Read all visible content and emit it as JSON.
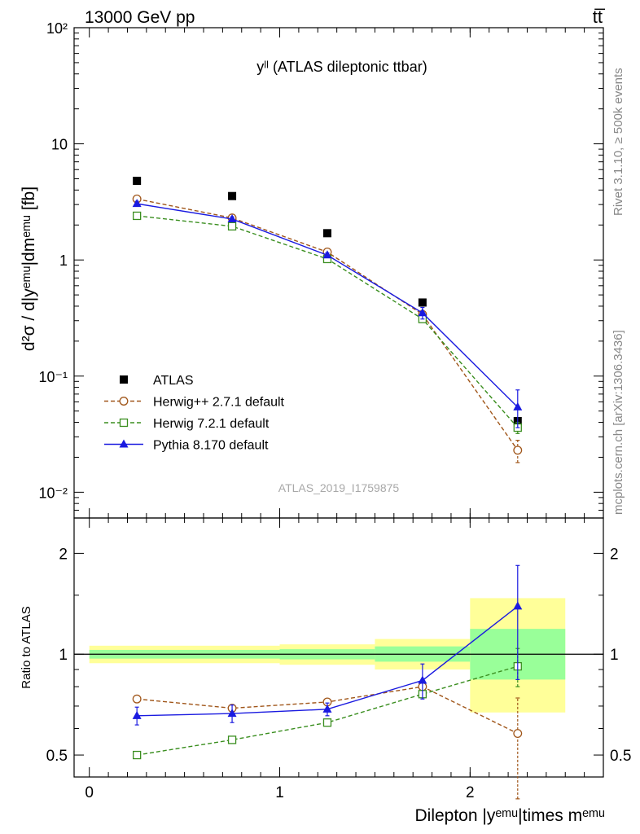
{
  "header": {
    "left": "13000 GeV pp",
    "right": "tt̅"
  },
  "side_text": {
    "rivet": "Rivet 3.1.10, ≥ 500k events",
    "mcplots": "mcplots.cern.ch [arXiv:1306.3436]"
  },
  "chart_data": [
    {
      "type": "scatter",
      "title": "yˡˡ (ATLAS dileptonic ttbar)",
      "ylabel": "d²σ / d|yᵉᵐᵘ|dmᵉᵐᵘ [fb]",
      "yscale": "log",
      "ylim": [
        0.006,
        100
      ],
      "xlim": [
        -0.08,
        2.7
      ],
      "y_tick_labels": [
        "10⁻²",
        "10⁻¹",
        "1",
        "10",
        "10²"
      ],
      "watermark": "ATLAS_2019_I1759875",
      "legend_position": "lower-left",
      "x": [
        0.25,
        0.75,
        1.25,
        1.75,
        2.25
      ],
      "series": [
        {
          "name": "ATLAS",
          "marker": "filled-square",
          "line": "none",
          "color": "#000000",
          "values": [
            4.8,
            3.55,
            1.7,
            0.43,
            0.041
          ]
        },
        {
          "name": "Herwig++ 2.7.1 default",
          "marker": "open-circle",
          "line": "dashed",
          "color": "#a0561a",
          "values": [
            3.35,
            2.3,
            1.17,
            0.34,
            0.023
          ],
          "err_low": [
            0,
            0,
            0,
            0,
            0.005
          ],
          "err_high": [
            0,
            0,
            0,
            0,
            0.005
          ]
        },
        {
          "name": "Herwig 7.2.1 default",
          "marker": "open-square",
          "line": "dashed",
          "color": "#3a8e1f",
          "values": [
            2.4,
            1.95,
            1.02,
            0.31,
            0.036
          ],
          "err_low": [
            0,
            0,
            0,
            0,
            0.004
          ],
          "err_high": [
            0,
            0,
            0,
            0,
            0.004
          ]
        },
        {
          "name": "Pythia 8.170 default",
          "marker": "filled-triangle",
          "line": "solid",
          "color": "#1a1ae0",
          "values": [
            3.05,
            2.25,
            1.1,
            0.35,
            0.054
          ],
          "err_low": [
            0.15,
            0.1,
            0.05,
            0.04,
            0.018
          ],
          "err_high": [
            0.15,
            0.1,
            0.05,
            0.04,
            0.022
          ]
        }
      ]
    },
    {
      "type": "scatter",
      "ylabel": "Ratio to ATLAS",
      "xlabel": "Dilepton |yᵉᵐᵘ|times mᵉᵐᵘ",
      "yscale": "log",
      "ylim": [
        0.43,
        2.55
      ],
      "xlim": [
        -0.08,
        2.7
      ],
      "x_ticks": [
        0,
        1,
        2
      ],
      "x_tick_labels": [
        "0",
        "1",
        "2"
      ],
      "y_ticks": [
        0.5,
        1,
        2
      ],
      "y_tick_labels": [
        "0.5",
        "1",
        "2"
      ],
      "bands": {
        "bins": [
          [
            0,
            1
          ],
          [
            1,
            1.5
          ],
          [
            1.5,
            2
          ],
          [
            2,
            2.5
          ]
        ],
        "yellow": [
          [
            0.94,
            1.06
          ],
          [
            0.93,
            1.07
          ],
          [
            0.9,
            1.11
          ],
          [
            0.67,
            1.47
          ]
        ],
        "green": [
          [
            0.97,
            1.03
          ],
          [
            0.965,
            1.035
          ],
          [
            0.95,
            1.055
          ],
          [
            0.84,
            1.19
          ]
        ],
        "yellow_color": "#ffff99",
        "green_color": "#99ff99"
      },
      "x": [
        0.25,
        0.75,
        1.25,
        1.75,
        2.25
      ],
      "series": [
        {
          "name": "Herwig++ 2.7.1 default",
          "marker": "open-circle",
          "line": "dashed",
          "color": "#a0561a",
          "values": [
            0.735,
            0.69,
            0.72,
            0.8,
            0.58
          ],
          "err_low": [
            0,
            0,
            0,
            0,
            0.21
          ],
          "err_high": [
            0,
            0,
            0,
            0,
            0.16
          ]
        },
        {
          "name": "Herwig 7.2.1 default",
          "marker": "open-square",
          "line": "dashed",
          "color": "#3a8e1f",
          "values": [
            0.5,
            0.555,
            0.625,
            0.76,
            0.92
          ],
          "err_low": [
            0,
            0,
            0,
            0,
            0.12
          ],
          "err_high": [
            0,
            0,
            0,
            0,
            0.12
          ]
        },
        {
          "name": "Pythia 8.170 default",
          "marker": "filled-triangle",
          "line": "solid",
          "color": "#1a1ae0",
          "values": [
            0.655,
            0.665,
            0.685,
            0.835,
            1.39
          ],
          "err_low": [
            0.04,
            0.04,
            0.03,
            0.1,
            0.55
          ],
          "err_high": [
            0.04,
            0.04,
            0.03,
            0.1,
            0.45
          ]
        }
      ]
    }
  ]
}
